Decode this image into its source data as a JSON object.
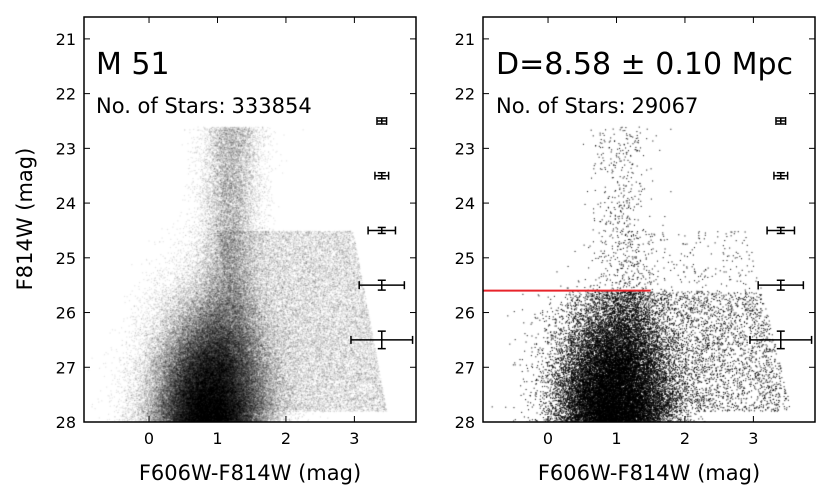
{
  "chart_data": [
    {
      "type": "scatter",
      "title": "M 51",
      "count_label": "No. of Stars:",
      "count_value": "333854",
      "xlabel": "F606W-F814W (mag)",
      "ylabel": "F814W (mag)",
      "xlim": [
        -0.95,
        3.9
      ],
      "ylim": [
        28,
        20.6
      ],
      "y_inverted": true,
      "xticks": [
        "0",
        "1",
        "2",
        "3"
      ],
      "yticks": [
        "21",
        "22",
        "23",
        "24",
        "25",
        "26",
        "27",
        "28"
      ],
      "stars": 333854,
      "point_color": "#000000",
      "error_bars": [
        {
          "x": 3.4,
          "y": 22.5,
          "xerr": 0.07,
          "yerr": 0.03
        },
        {
          "x": 3.4,
          "y": 23.5,
          "xerr": 0.1,
          "yerr": 0.04
        },
        {
          "x": 3.4,
          "y": 24.5,
          "xerr": 0.2,
          "yerr": 0.05
        },
        {
          "x": 3.4,
          "y": 25.5,
          "xerr": 0.33,
          "yerr": 0.09
        },
        {
          "x": 3.4,
          "y": 26.5,
          "xerr": 0.45,
          "yerr": 0.16
        }
      ]
    },
    {
      "type": "scatter",
      "title": "D=8.58 ± 0.10 Mpc",
      "count_label": "No. of Stars:",
      "count_value": "29067",
      "xlabel": "F606W-F814W (mag)",
      "ylabel": "",
      "xlim": [
        -0.95,
        3.9
      ],
      "ylim": [
        28,
        20.6
      ],
      "y_inverted": true,
      "xticks": [
        "0",
        "1",
        "2",
        "3"
      ],
      "yticks": [
        "21",
        "22",
        "23",
        "24",
        "25",
        "26",
        "27",
        "28"
      ],
      "stars": 29067,
      "point_color": "#000000",
      "trgb": {
        "y": 25.6,
        "x_from": -0.95,
        "x_to": 1.5,
        "color": "#e8232a"
      },
      "error_bars": [
        {
          "x": 3.4,
          "y": 22.5,
          "xerr": 0.07,
          "yerr": 0.03
        },
        {
          "x": 3.4,
          "y": 23.5,
          "xerr": 0.1,
          "yerr": 0.04
        },
        {
          "x": 3.4,
          "y": 24.5,
          "xerr": 0.2,
          "yerr": 0.05
        },
        {
          "x": 3.4,
          "y": 25.5,
          "xerr": 0.33,
          "yerr": 0.09
        },
        {
          "x": 3.4,
          "y": 26.5,
          "xerr": 0.45,
          "yerr": 0.16
        }
      ]
    }
  ]
}
